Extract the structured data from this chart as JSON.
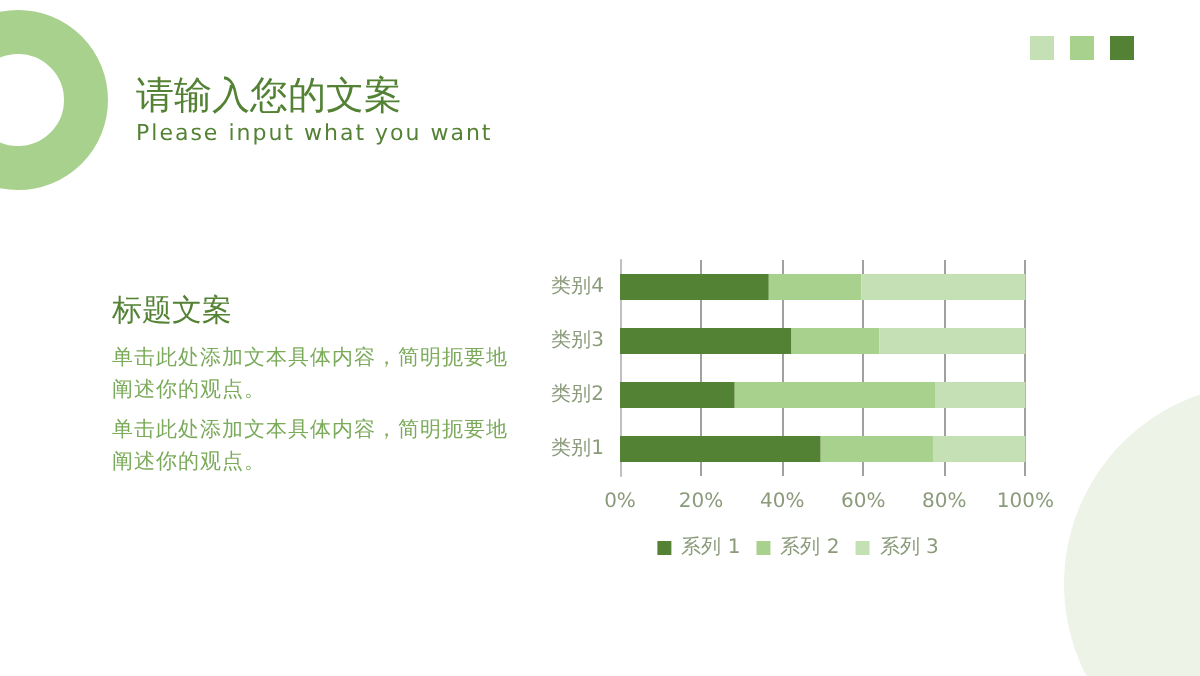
{
  "chart_data": {
    "type": "bar",
    "orientation": "horizontal",
    "stacked": true,
    "title": "请输入您的文案",
    "subtitle": "Please input what you want",
    "annotations": [
      "标题文案",
      "单击此处添加文本具体内容，简明扼要地阐述你的观点。",
      "单击此处添加文本具体内容，简明扼要地阐述你的观点。"
    ],
    "categories": [
      "类别4",
      "类别3",
      "类别2",
      "类别1"
    ],
    "series": [
      {
        "name": "系列 1",
        "color": "#548235",
        "values": [
          36.7,
          42.3,
          28.3,
          49.5
        ]
      },
      {
        "name": "系列 2",
        "color": "#a9d18e",
        "values": [
          22.8,
          21.7,
          49.4,
          27.7
        ]
      },
      {
        "name": "系列 3",
        "color": "#c5e0b4",
        "values": [
          40.5,
          36,
          22.3,
          22.8
        ]
      }
    ],
    "xlim": [
      0,
      100
    ],
    "xticks": [
      {
        "value": 0,
        "label": "0%"
      },
      {
        "value": 20,
        "label": "20%"
      },
      {
        "value": 40,
        "label": "40%"
      },
      {
        "value": 60,
        "label": "60%"
      },
      {
        "value": 80,
        "label": "80%"
      },
      {
        "value": 100,
        "label": "100%"
      }
    ],
    "grid": "x",
    "legend": "bottom"
  }
}
